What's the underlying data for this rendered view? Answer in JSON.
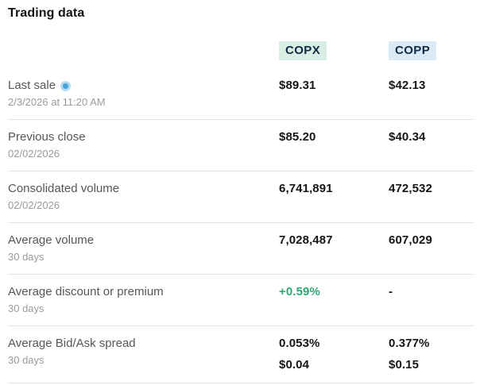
{
  "title": "Trading data",
  "columns": [
    {
      "ticker": "COPX"
    },
    {
      "ticker": "COPP"
    }
  ],
  "rows": [
    {
      "label": "Last sale",
      "live_indicator": true,
      "sublabel": "2/3/2026 at 11:20 AM",
      "values": [
        "$89.31",
        "$42.13"
      ]
    },
    {
      "label": "Previous close",
      "sublabel": "02/02/2026",
      "values": [
        "$85.20",
        "$40.34"
      ]
    },
    {
      "label": "Consolidated volume",
      "sublabel": "02/02/2026",
      "values": [
        "6,741,891",
        "472,532"
      ]
    },
    {
      "label": "Average volume",
      "sublabel": "30 days",
      "values": [
        "7,028,487",
        "607,029"
      ]
    },
    {
      "label": "Average discount or premium",
      "sublabel": "30 days",
      "values": [
        "+0.59%",
        "-"
      ],
      "value_colors": [
        "#2fa874",
        null
      ]
    },
    {
      "label": "Average Bid/Ask spread",
      "sublabel": "30 days",
      "values": [
        [
          "0.053%",
          "$0.04"
        ],
        [
          "0.377%",
          "$0.15"
        ]
      ]
    }
  ],
  "colors": {
    "copx_highlight": "#d9eee3",
    "copp_highlight": "#dbeaf4",
    "ticker_text": "#0d2b44",
    "positive_value": "#2fa874",
    "divider": "#e3e4e5",
    "label": "#54575b",
    "sublabel": "#989b9e",
    "value": "#161617",
    "live_icon_outer": "#b5daf1",
    "live_icon_inner": "#47a3db"
  }
}
